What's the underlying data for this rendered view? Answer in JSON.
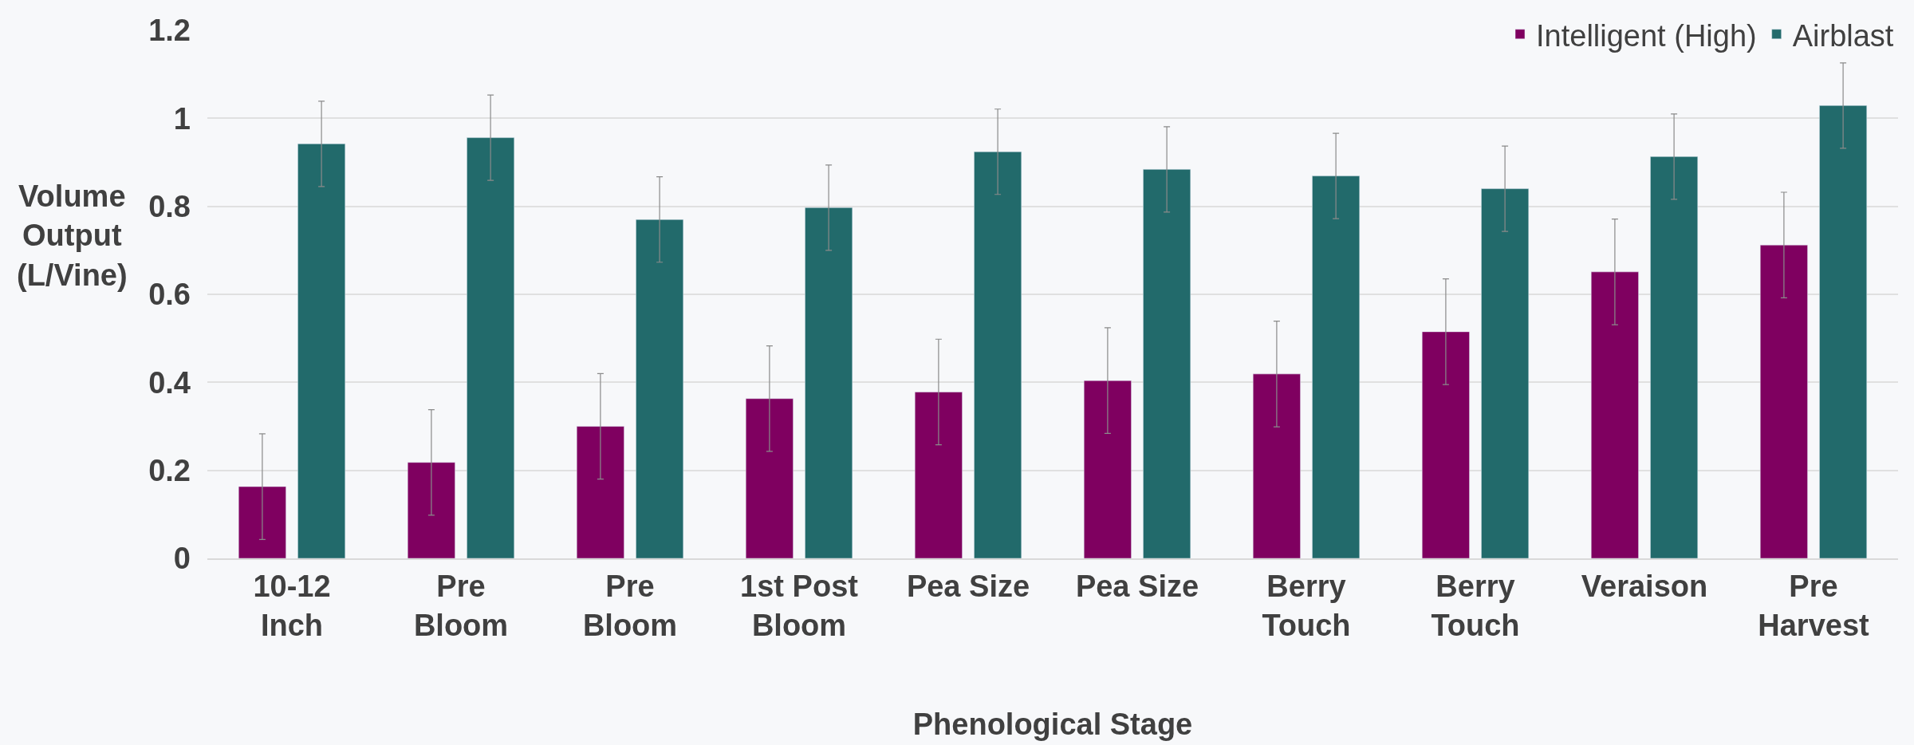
{
  "chart_data": {
    "type": "bar",
    "xlabel": "Phenological Stage",
    "ylabel": "Volume\nOutput\n(L/Vine)",
    "categories": [
      "10-12\nInch",
      "Pre\nBloom",
      "Pre\nBloom",
      "1st Post\nBloom",
      "Pea Size",
      "Pea Size",
      "Berry\nTouch",
      "Berry\nTouch",
      "Veraison",
      "Pre\nHarvest"
    ],
    "series": [
      {
        "name": "Intelligent (High)",
        "color": "#7f0060",
        "values": [
          0.163,
          0.218,
          0.3,
          0.363,
          0.378,
          0.404,
          0.419,
          0.515,
          0.651,
          0.712
        ],
        "errors": [
          0.12,
          0.12,
          0.12,
          0.12,
          0.12,
          0.12,
          0.12,
          0.12,
          0.12,
          0.12
        ]
      },
      {
        "name": "Airblast",
        "color": "#226a6b",
        "values": [
          0.942,
          0.956,
          0.77,
          0.797,
          0.924,
          0.884,
          0.869,
          0.84,
          0.913,
          1.029
        ],
        "errors": [
          0.097,
          0.097,
          0.097,
          0.097,
          0.097,
          0.097,
          0.097,
          0.097,
          0.097,
          0.097
        ]
      }
    ],
    "ylim": [
      0,
      1.2
    ],
    "yticks": [
      0,
      0.2,
      0.4,
      0.6,
      0.8,
      1,
      1.2
    ],
    "grid": "y",
    "legend": "top right"
  }
}
